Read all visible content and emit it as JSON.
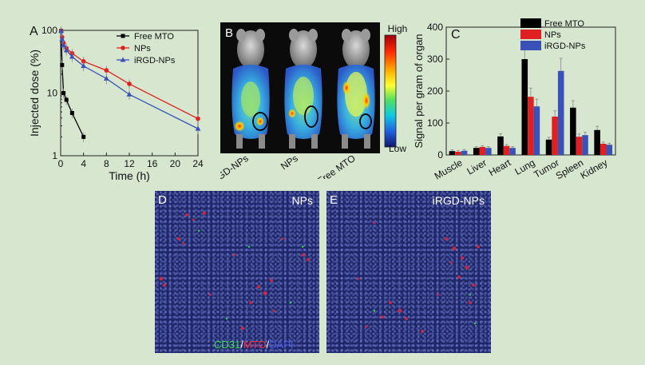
{
  "panels": {
    "A": {
      "label": "A",
      "chart_data": {
        "type": "line",
        "xlabel": "Time (h)",
        "ylabel": "Injected dose (%)",
        "xticks": [
          0,
          4,
          8,
          12,
          16,
          20,
          24
        ],
        "yticks": [
          "1",
          "10",
          "100"
        ],
        "xlim": [
          0,
          24
        ],
        "ylim": [
          1,
          100
        ],
        "yscale": "log",
        "legend_position": "top-right",
        "series": [
          {
            "name": "Free MTO",
            "color": "#000000",
            "marker": "square",
            "x": [
              0.083,
              0.25,
              0.5,
              1,
              2,
              4
            ],
            "y": [
              98,
              28,
              10,
              7.8,
              4.8,
              2.0
            ]
          },
          {
            "name": "NPs",
            "color": "#e02020",
            "marker": "circle",
            "x": [
              0.083,
              0.25,
              0.5,
              1,
              2,
              4,
              8,
              12,
              24
            ],
            "y": [
              98,
              78,
              63,
              52,
              43,
              32,
              23,
              14,
              3.9
            ]
          },
          {
            "name": "iRGD-NPs",
            "color": "#3a52b8",
            "marker": "triangle",
            "x": [
              0.083,
              0.25,
              0.5,
              1,
              2,
              4,
              8,
              12,
              24
            ],
            "y": [
              98,
              72,
              58,
              48,
              38,
              27,
              17,
              9.5,
              2.7
            ]
          }
        ]
      }
    },
    "B": {
      "label": "B",
      "scale_high": "High",
      "scale_low": "Low",
      "mice": [
        "iRGD-NPs",
        "NPs",
        "Free MTO"
      ]
    },
    "C": {
      "label": "C",
      "chart_data": {
        "type": "bar",
        "ylabel": "Signal per gram of organ",
        "ylim": [
          0,
          400
        ],
        "yticks": [
          "0",
          "100",
          "200",
          "300",
          "400"
        ],
        "categories": [
          "Muscle",
          "Liver",
          "Heart",
          "Lung",
          "Tumor",
          "Spleen",
          "Kidney"
        ],
        "legend_position": "top-right",
        "series": [
          {
            "name": "Free MTO",
            "color": "#000000",
            "values": [
              12,
              22,
              58,
              300,
              48,
              148,
              78
            ]
          },
          {
            "name": "NPs",
            "color": "#e02020",
            "values": [
              10,
              25,
              28,
              182,
              120,
              57,
              35
            ]
          },
          {
            "name": "iRGD-NPs",
            "color": "#3a52b8",
            "values": [
              13,
              22,
              22,
              152,
              263,
              62,
              32
            ]
          }
        ]
      }
    },
    "D": {
      "label": "D",
      "tag": "NPs"
    },
    "E": {
      "label": "E",
      "tag": "iRGD-NPs"
    },
    "stain_legend": {
      "cd31": "CD31",
      "slash1": "/",
      "mto": "MTO",
      "slash2": "/",
      "dapi": "DAPI"
    }
  }
}
